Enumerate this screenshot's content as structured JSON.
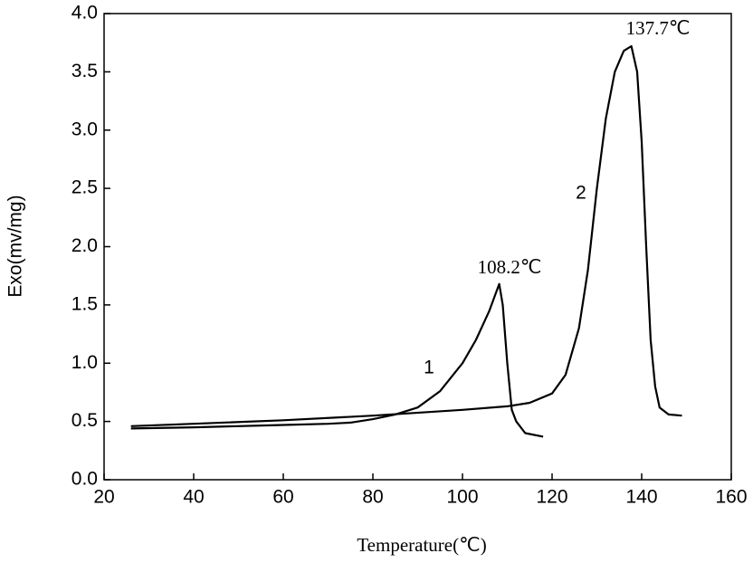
{
  "chart_data": {
    "type": "line",
    "xlabel": "Temperature(℃)",
    "ylabel": "Exo(mv/mg)",
    "annotations": [
      "108.2℃",
      "137.7℃"
    ],
    "series": [
      {
        "name": "1",
        "color": "#000000",
        "x": [
          26,
          40,
          60,
          70,
          75,
          80,
          85,
          90,
          95,
          100,
          103,
          106,
          108.2,
          109,
          110,
          111,
          112,
          114,
          118
        ],
        "values": [
          0.44,
          0.45,
          0.47,
          0.48,
          0.49,
          0.52,
          0.56,
          0.62,
          0.76,
          1.0,
          1.2,
          1.45,
          1.68,
          1.5,
          1.0,
          0.6,
          0.5,
          0.4,
          0.37
        ]
      },
      {
        "name": "2",
        "color": "#000000",
        "x": [
          26,
          40,
          60,
          80,
          100,
          110,
          115,
          120,
          123,
          126,
          128,
          130,
          132,
          134,
          136,
          137.7,
          139,
          140,
          141,
          142,
          143,
          144,
          146,
          149
        ],
        "values": [
          0.46,
          0.48,
          0.51,
          0.55,
          0.6,
          0.63,
          0.66,
          0.74,
          0.9,
          1.3,
          1.8,
          2.5,
          3.1,
          3.5,
          3.68,
          3.72,
          3.5,
          2.9,
          2.0,
          1.2,
          0.8,
          0.62,
          0.56,
          0.55
        ]
      }
    ],
    "xlim": [
      20,
      160
    ],
    "xticks": [
      20,
      40,
      60,
      80,
      100,
      120,
      140,
      160
    ],
    "ylim": [
      0,
      4
    ],
    "yticks": [
      {
        "value": 0,
        "label": "0.0"
      },
      0.5,
      {
        "value": 1,
        "label": "1.0"
      },
      1.5,
      {
        "value": 2,
        "label": "2.0"
      },
      2.5,
      {
        "value": 3,
        "label": "3.0"
      },
      3.5,
      {
        "value": 4,
        "label": "4.0"
      }
    ]
  }
}
